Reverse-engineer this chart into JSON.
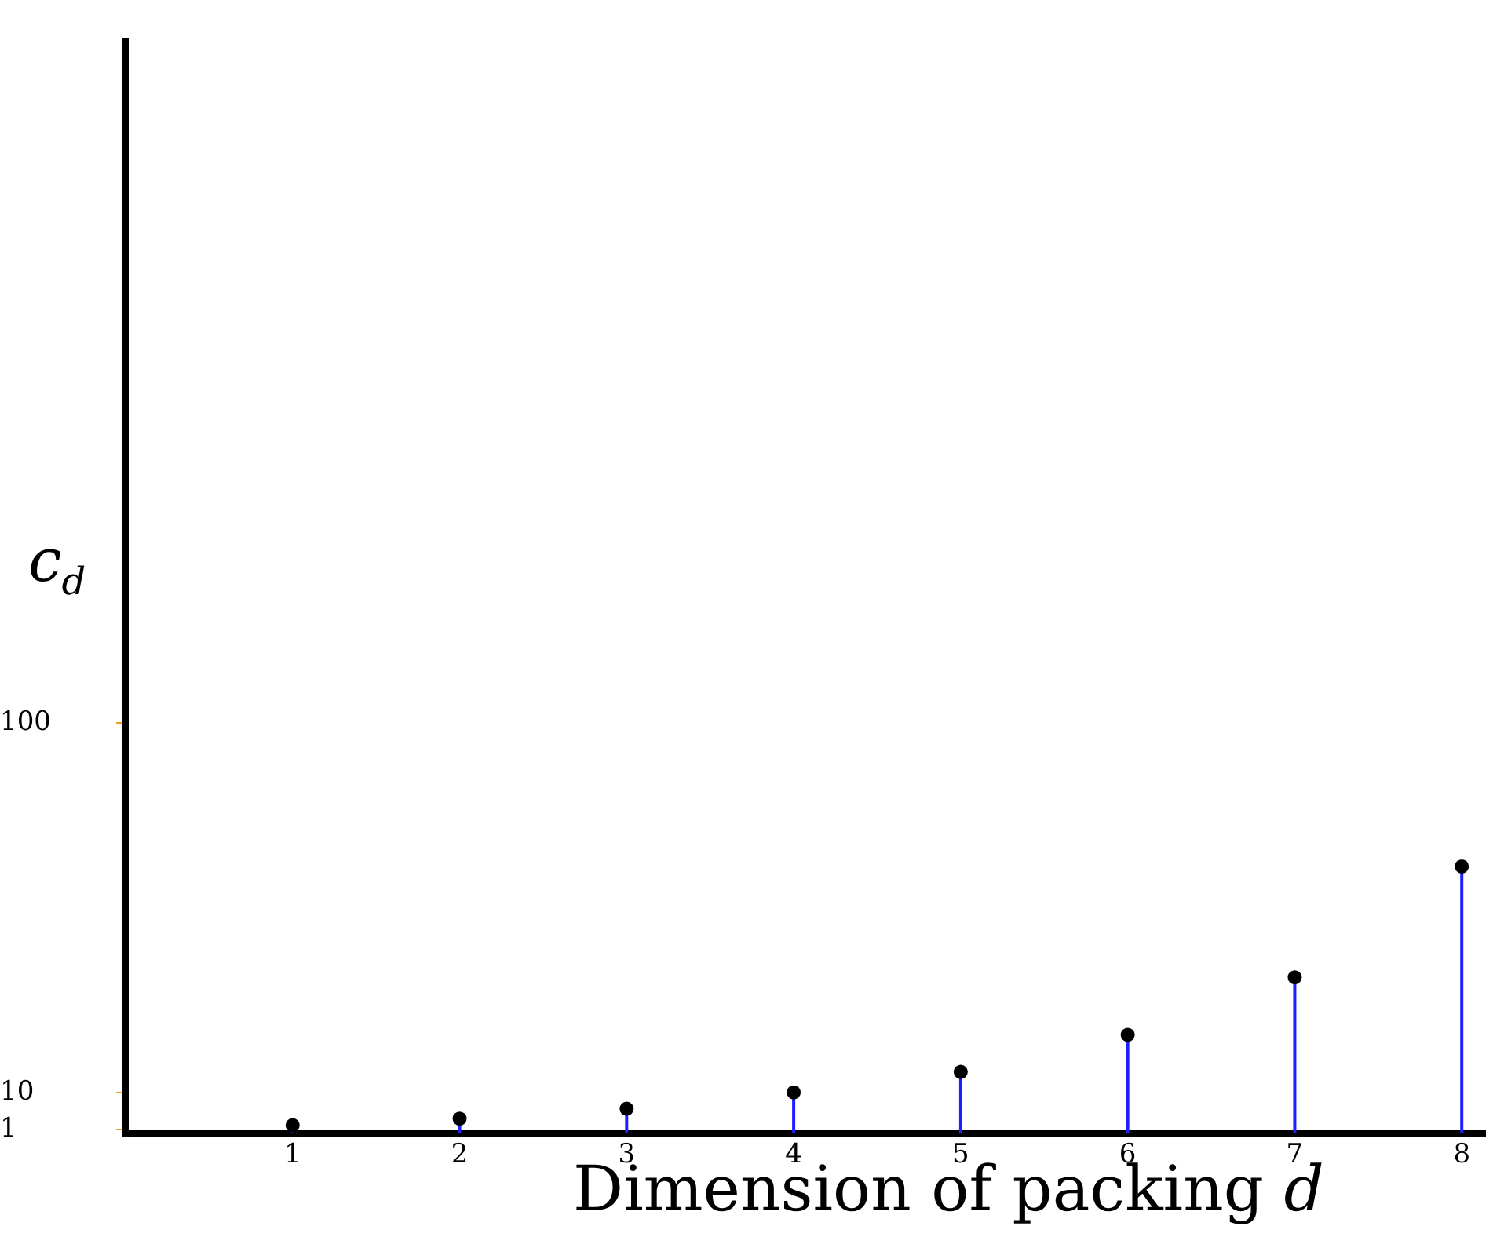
{
  "chart_data": {
    "type": "lollipop",
    "xlabel": "Dimension of packing d",
    "ylabel": "c$_{d}$",
    "x": [
      1,
      2,
      3,
      4,
      5,
      6,
      7,
      8
    ],
    "values": [
      2,
      3.6,
      6,
      10,
      15,
      24,
      38,
      65
    ],
    "color": "#000000",
    "xlim": [
      0,
      8.14
    ],
    "xticks": [
      1,
      2,
      3,
      4,
      5,
      6,
      7,
      8
    ],
    "ylim": [
      0,
      266
    ],
    "yticks": [
      1,
      10,
      100
    ],
    "marker": "circle",
    "grid": false,
    "legend": false
  }
}
